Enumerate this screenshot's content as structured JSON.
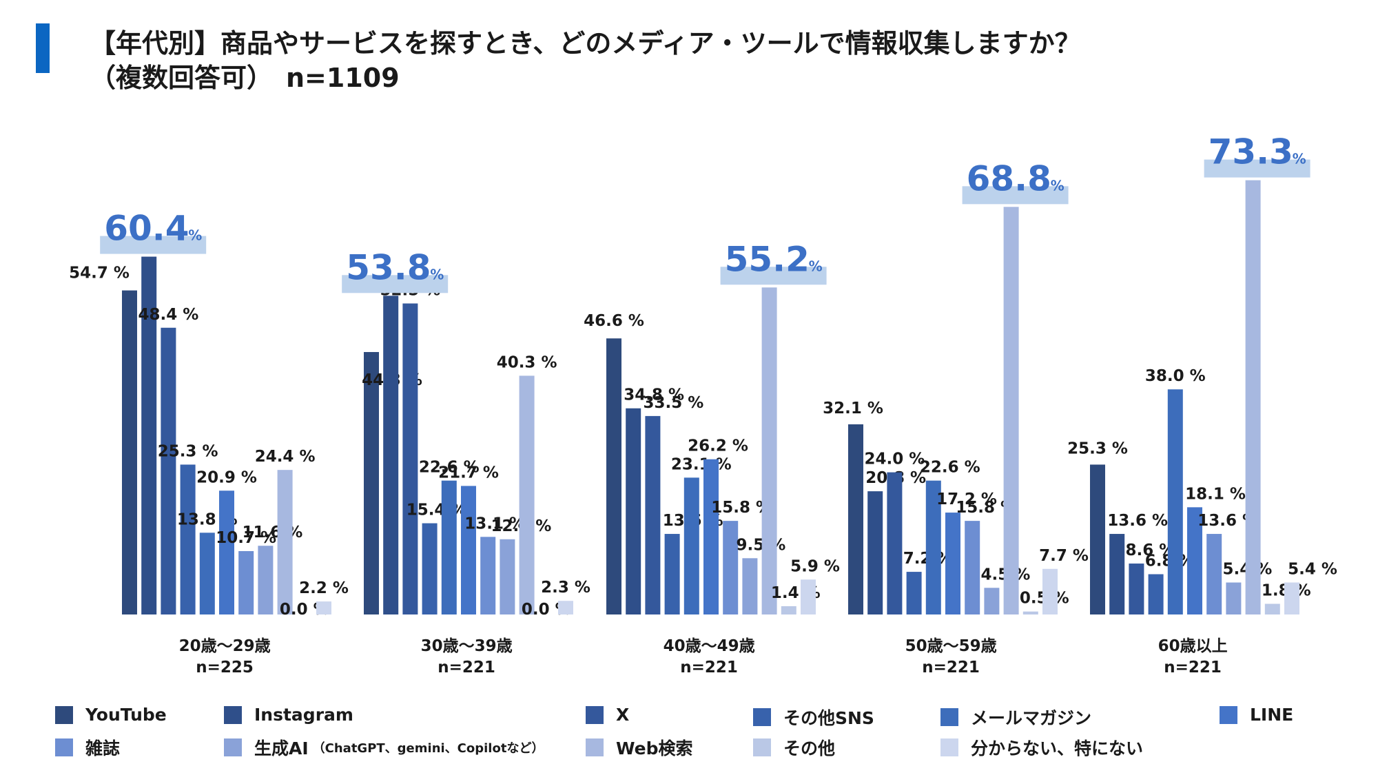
{
  "title": {
    "line1": "【年代別】商品やサービスを探すとき、どのメディア・ツールで情報収集しますか？",
    "line2": "（複数回答可）　n=1109"
  },
  "chart_data": {
    "type": "bar",
    "categories": [
      "20歳～29歳",
      "30歳～39歳",
      "40歳～49歳",
      "50歳～59歳",
      "60歳以上"
    ],
    "category_n": [
      "n=225",
      "n=221",
      "n=221",
      "n=221",
      "n=221"
    ],
    "unit": "%",
    "ylim": [
      0,
      80
    ],
    "grid": false,
    "legend_position": "bottom",
    "series": [
      {
        "name": "YouTube",
        "color": "#2e4a7c",
        "values": [
          54.7,
          44.3,
          46.6,
          32.1,
          25.3
        ]
      },
      {
        "name": "Instagram",
        "color": "#2f4f8a",
        "values": [
          60.4,
          53.8,
          34.8,
          20.8,
          13.6
        ]
      },
      {
        "name": "X",
        "color": "#34589c",
        "values": [
          48.4,
          52.5,
          33.5,
          24.0,
          8.6
        ]
      },
      {
        "name": "その他SNS",
        "color": "#3862ac",
        "values": [
          25.3,
          15.4,
          13.6,
          7.2,
          6.8
        ]
      },
      {
        "name": "メールマガジン",
        "color": "#3d6dbb",
        "values": [
          13.8,
          22.6,
          23.1,
          22.6,
          38.0
        ]
      },
      {
        "name": "LINE",
        "color": "#4474c8",
        "values": [
          20.9,
          21.7,
          26.2,
          17.2,
          18.1
        ]
      },
      {
        "name": "雑誌",
        "color": "#6d8ed2",
        "values": [
          10.7,
          13.1,
          15.8,
          15.8,
          13.6
        ]
      },
      {
        "name": "生成AI",
        "note": "（ChatGPT、gemini、Copilotなど）",
        "color": "#8aa2d8",
        "values": [
          11.6,
          12.7,
          9.5,
          4.5,
          5.4
        ]
      },
      {
        "name": "Web検索",
        "color": "#a7b8e0",
        "values": [
          24.4,
          40.3,
          55.2,
          68.8,
          73.3
        ]
      },
      {
        "name": "その他",
        "color": "#bac8e6",
        "values": [
          0.0,
          0.0,
          1.4,
          0.5,
          1.8
        ]
      },
      {
        "name": "分からない、特にない",
        "color": "#ccd6ee",
        "values": [
          2.2,
          2.3,
          5.9,
          7.7,
          5.4
        ]
      }
    ],
    "callouts": [
      {
        "group": 0,
        "series": 1,
        "value": "60.4"
      },
      {
        "group": 1,
        "series": 1,
        "value": "53.8"
      },
      {
        "group": 2,
        "series": 8,
        "value": "55.2"
      },
      {
        "group": 3,
        "series": 8,
        "value": "68.8"
      },
      {
        "group": 4,
        "series": 8,
        "value": "73.3"
      }
    ],
    "callout_color": "#bcd2ec",
    "callout_text_color": "#3c70c6"
  }
}
